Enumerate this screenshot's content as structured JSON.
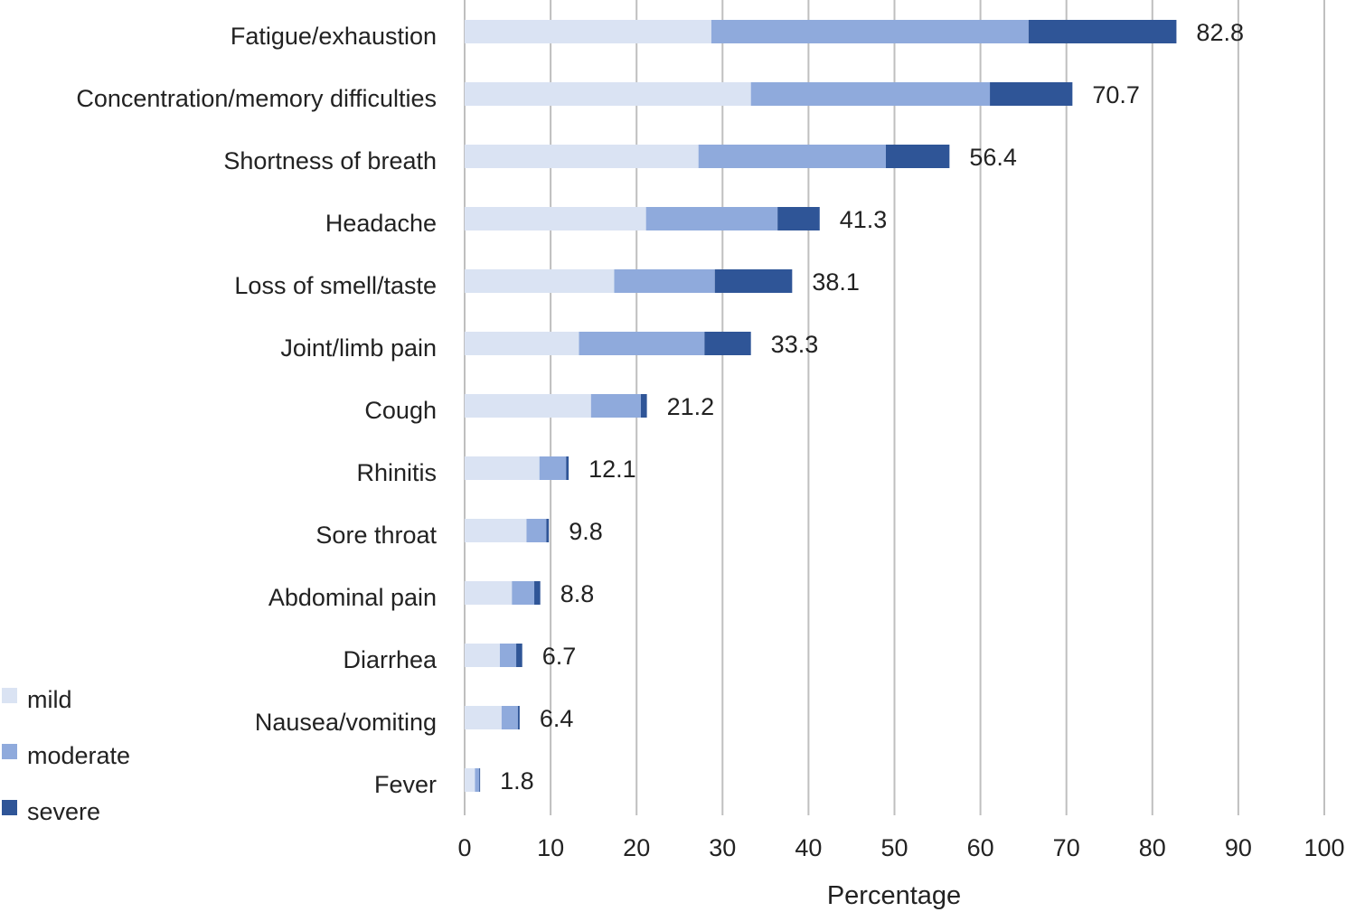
{
  "chart_data": {
    "type": "bar",
    "orientation": "horizontal",
    "stacked": true,
    "title": "",
    "xlabel": "Percentage",
    "ylabel": "",
    "xlim": [
      0,
      100
    ],
    "x_ticks": [
      0,
      10,
      20,
      30,
      40,
      50,
      60,
      70,
      80,
      90,
      100
    ],
    "grid": true,
    "legend_position": "left-bottom",
    "categories": [
      "Fatigue/exhaustion",
      "Concentration/memory difficulties",
      "Shortness of breath",
      "Headache",
      "Loss of smell/taste",
      "Joint/limb pain",
      "Cough",
      "Rhinitis",
      "Sore throat",
      "Abdominal pain",
      "Diarrhea",
      "Nausea/vomiting",
      "Fever"
    ],
    "series": [
      {
        "name": "mild",
        "color": "#dae3f3",
        "values": [
          28.7,
          33.3,
          27.2,
          21.1,
          17.4,
          13.3,
          14.7,
          8.7,
          7.2,
          5.5,
          4.1,
          4.3,
          1.2
        ]
      },
      {
        "name": "moderate",
        "color": "#8faadc",
        "values": [
          36.9,
          27.8,
          21.8,
          15.3,
          11.7,
          14.6,
          5.8,
          3.1,
          2.3,
          2.6,
          1.9,
          1.9,
          0.5
        ]
      },
      {
        "name": "severe",
        "color": "#2f5597",
        "values": [
          17.2,
          9.6,
          7.4,
          4.9,
          9.0,
          5.4,
          0.7,
          0.3,
          0.3,
          0.7,
          0.7,
          0.2,
          0.1
        ]
      }
    ],
    "totals": [
      "82.8",
      "70.7",
      "56.4",
      "41.3",
      "38.1",
      "33.3",
      "21.2",
      "12.1",
      "9.8",
      "8.8",
      "6.7",
      "6.4",
      "1.8"
    ]
  }
}
